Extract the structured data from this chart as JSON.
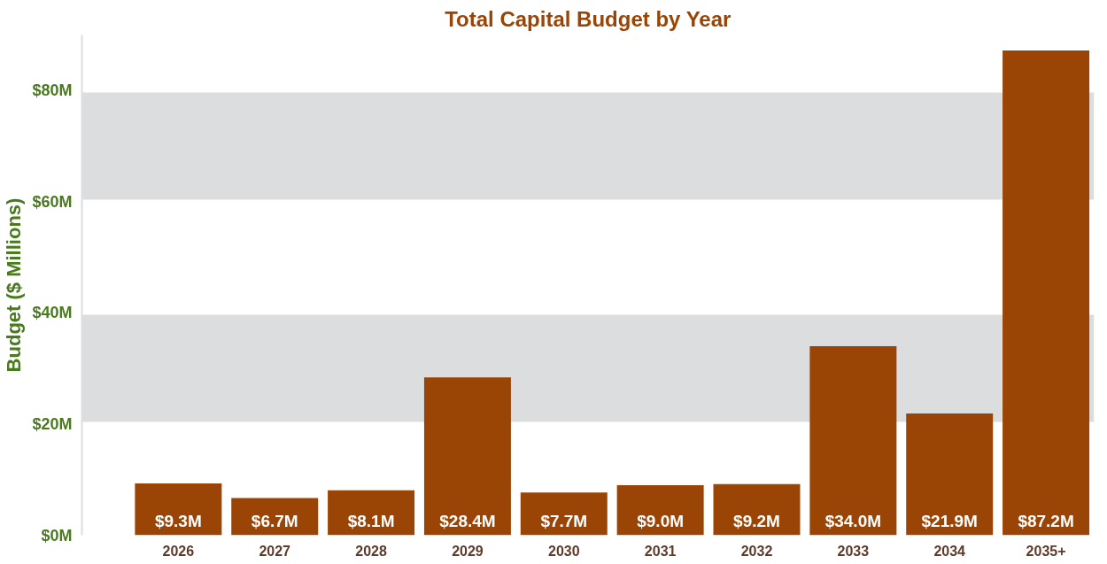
{
  "chart_data": {
    "type": "bar",
    "title": "Total Capital Budget by Year",
    "ylabel": "Budget ($ Millions)",
    "categories": [
      "2026",
      "2027",
      "2028",
      "2029",
      "2030",
      "2031",
      "2032",
      "2033",
      "2034",
      "2035+"
    ],
    "values": [
      9.3,
      6.7,
      8.1,
      28.4,
      7.7,
      9.0,
      9.2,
      34.0,
      21.9,
      87.2
    ],
    "value_labels": [
      "$9.3M",
      "$6.7M",
      "$8.1M",
      "$28.4M",
      "$7.7M",
      "$9.0M",
      "$9.2M",
      "$34.0M",
      "$21.9M",
      "$87.2M"
    ],
    "color": "#9a4505",
    "ylim": [
      0,
      90
    ],
    "yticks": [
      {
        "value": 0,
        "label": "$0M"
      },
      {
        "value": 20,
        "label": "$20M"
      },
      {
        "value": 40,
        "label": "$40M"
      },
      {
        "value": 60,
        "label": "$60M"
      },
      {
        "value": 80,
        "label": "$80M"
      }
    ],
    "grid": "y"
  }
}
